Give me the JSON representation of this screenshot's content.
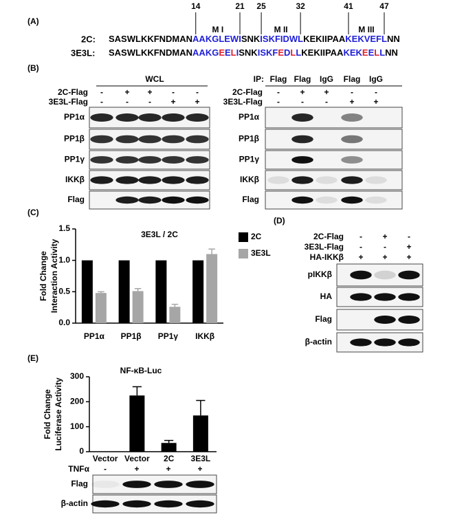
{
  "panel_labels": [
    "(A)",
    "(B)",
    "(C)",
    "(D)",
    "(E)"
  ],
  "sequence_alignment": {
    "positions": [
      14,
      21,
      25,
      32,
      41,
      47
    ],
    "motifs": [
      {
        "label": "M I",
        "color": "#2020d8"
      },
      {
        "label": "M II",
        "color": "#2020d8"
      },
      {
        "label": "M III",
        "color": "#2020d8"
      }
    ],
    "rows": [
      {
        "label": "2C:",
        "segments": [
          {
            "text": "SASWLKKFNDMAN",
            "color": "#000000"
          },
          {
            "text": "AAKGLEWI",
            "color": "#2020d8"
          },
          {
            "text": "SNK",
            "color": "#000000"
          },
          {
            "text": "ISKFIDWL",
            "color": "#2020d8"
          },
          {
            "text": "KEKIIPAA",
            "color": "#000000"
          },
          {
            "text": "KEKVEFL",
            "color": "#2020d8"
          },
          {
            "text": "NN",
            "color": "#000000"
          }
        ]
      },
      {
        "label": "3E3L:",
        "segments": [
          {
            "text": "SASWLKKFNDMAN",
            "color": "#000000"
          },
          {
            "text": "AAKG",
            "color": "#2020d8"
          },
          {
            "text": "E",
            "color": "#e0202a"
          },
          {
            "text": "E",
            "color": "#2020d8"
          },
          {
            "text": "L",
            "color": "#e0202a"
          },
          {
            "text": "I",
            "color": "#2020d8"
          },
          {
            "text": "SNK",
            "color": "#000000"
          },
          {
            "text": "ISKF",
            "color": "#2020d8"
          },
          {
            "text": "E",
            "color": "#e0202a"
          },
          {
            "text": "D",
            "color": "#2020d8"
          },
          {
            "text": "L",
            "color": "#e0202a"
          },
          {
            "text": "L",
            "color": "#2020d8"
          },
          {
            "text": "KEKIIPAA",
            "color": "#000000"
          },
          {
            "text": "KEK",
            "color": "#2020d8"
          },
          {
            "text": "E",
            "color": "#e0202a"
          },
          {
            "text": "E",
            "color": "#2020d8"
          },
          {
            "text": "L",
            "color": "#e0202a"
          },
          {
            "text": "L",
            "color": "#2020d8"
          },
          {
            "text": "NN",
            "color": "#000000"
          }
        ]
      }
    ]
  },
  "wcl_blot": {
    "title": "WCL",
    "conditions": [
      {
        "label": "2C-Flag",
        "signs": [
          "-",
          "+",
          "+",
          "-",
          "-"
        ]
      },
      {
        "label": "3E3L-Flag",
        "signs": [
          "-",
          "-",
          "-",
          "+",
          "+"
        ]
      }
    ],
    "rows": [
      "PP1α",
      "PP1β",
      "PP1γ",
      "IKKβ",
      "Flag"
    ]
  },
  "ip_blot": {
    "prefix": "IP:",
    "lanes": [
      "Flag",
      "Flag",
      "IgG",
      "Flag",
      "IgG"
    ],
    "conditions": [
      {
        "label": "2C-Flag",
        "signs": [
          "-",
          "+",
          "+",
          "-",
          "-"
        ]
      },
      {
        "label": "3E3L-Flag",
        "signs": [
          "-",
          "-",
          "-",
          "+",
          "+"
        ]
      }
    ],
    "rows": [
      "PP1α",
      "PP1β",
      "PP1γ",
      "IKKβ",
      "Flag"
    ]
  },
  "d_blot": {
    "conditions": [
      {
        "label": "2C-Flag",
        "signs": [
          "-",
          "+",
          "-"
        ]
      },
      {
        "label": "3E3L-Flag",
        "signs": [
          "-",
          "-",
          "+"
        ]
      },
      {
        "label": "HA-IKKβ",
        "signs": [
          "+",
          "+",
          "+"
        ]
      }
    ],
    "rows": [
      "pIKKβ",
      "HA",
      "Flag",
      "β-actin"
    ]
  },
  "e_blot": {
    "conditions": [
      {
        "label": "TNFα",
        "signs": [
          "-",
          "+",
          "+",
          "+"
        ]
      }
    ],
    "rows": [
      "Flag",
      "β-actin"
    ]
  },
  "chart_data": [
    {
      "type": "bar",
      "title": "3E3L / 2C",
      "y_label": [
        "Fold Change",
        "Interaction Activity"
      ],
      "categories": [
        "PP1α",
        "PP1β",
        "PP1γ",
        "IKKβ"
      ],
      "series": [
        {
          "name": "2C",
          "color": "#000000",
          "values": [
            1,
            1,
            1,
            1
          ]
        },
        {
          "name": "3E3L",
          "color": "#a6a6a6",
          "values": [
            0.48,
            0.51,
            0.26,
            1.1
          ],
          "errors": [
            0.02,
            0.04,
            0.04,
            0.08
          ]
        }
      ],
      "ylim": [
        0,
        1.5
      ],
      "yticks": [
        {
          "value": 0,
          "label": "0.0"
        },
        0.5,
        {
          "value": 1,
          "label": "1.0"
        },
        1.5
      ],
      "legend": "right"
    },
    {
      "type": "bar",
      "title": "NF-κB-Luc",
      "y_label": [
        "Fold Change",
        "Luciferase Activity"
      ],
      "categories": [
        "Vector",
        "Vector",
        "2C",
        "3E3L"
      ],
      "series": [
        {
          "color": "#000000",
          "values": [
            1,
            225,
            35,
            145
          ],
          "errors": [
            null,
            35,
            10,
            60
          ]
        }
      ],
      "ylim": [
        0,
        300
      ],
      "yticks": [
        0,
        100,
        200,
        300
      ]
    }
  ]
}
